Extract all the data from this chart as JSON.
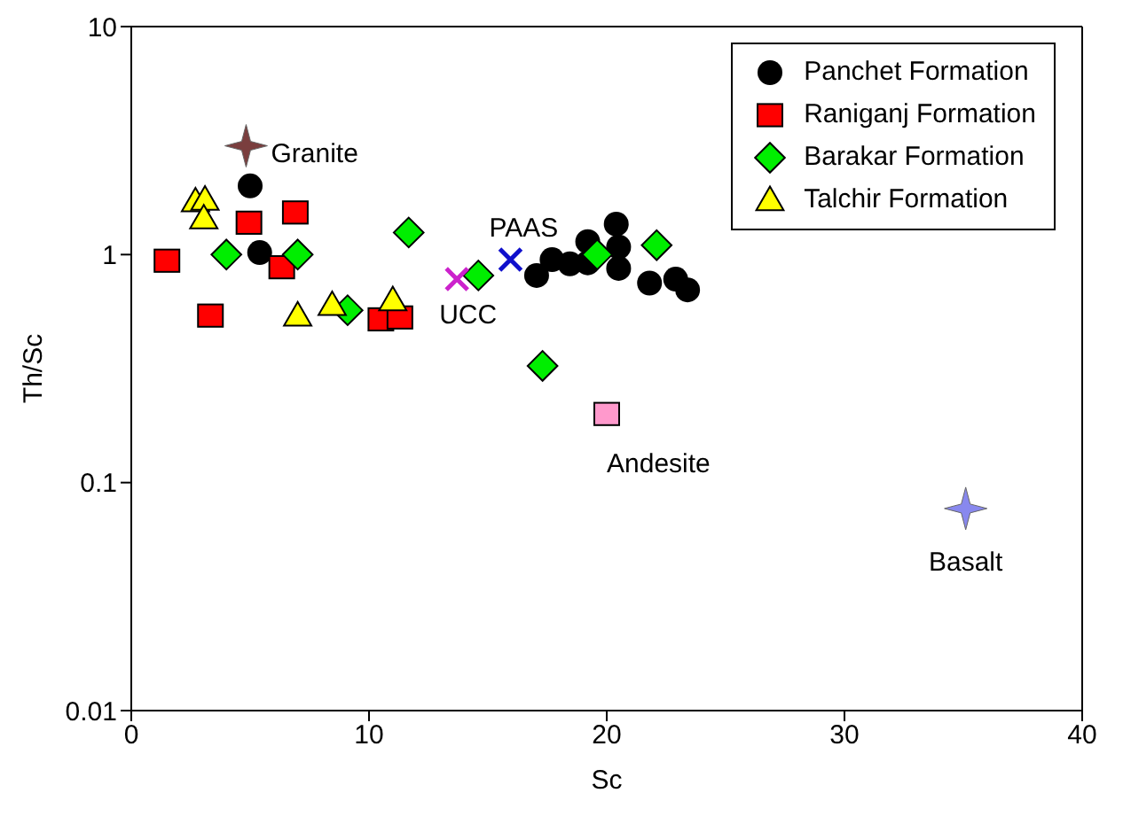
{
  "chart_data": {
    "type": "scatter",
    "xlabel": "Sc",
    "ylabel": "Th/Sc",
    "log": "y",
    "xlim": [
      0,
      40
    ],
    "xticks": [
      0,
      10,
      20,
      30,
      40
    ],
    "ylim": [
      0.01,
      10
    ],
    "yticks": [
      0.01,
      0.1,
      1,
      10
    ],
    "grid": false,
    "legend": "top right",
    "series": [
      {
        "name": "Panchet Formation",
        "color": "#000000",
        "marker": "circle",
        "x": [
          5.0,
          5.4,
          17.05,
          17.7,
          18.45,
          19.2,
          19.2,
          20.4,
          20.5,
          20.5,
          21.8,
          22.9,
          23.4
        ],
        "values": [
          2.0,
          1.02,
          0.81,
          0.95,
          0.91,
          0.92,
          1.14,
          1.36,
          1.08,
          0.87,
          0.75,
          0.78,
          0.7
        ]
      },
      {
        "name": "Raniganj Formation",
        "color": "#ff0000",
        "marker": "square",
        "x": [
          1.5,
          4.95,
          6.9,
          6.33,
          3.33,
          10.5,
          11.3
        ],
        "values": [
          0.94,
          1.38,
          1.53,
          0.88,
          0.54,
          0.52,
          0.53
        ]
      },
      {
        "name": "Barakar Formation",
        "color": "#00ee00",
        "marker": "diamond",
        "x": [
          4.0,
          7.0,
          11.67,
          9.1,
          14.6,
          19.6,
          22.1,
          17.3
        ],
        "values": [
          1.0,
          1.0,
          1.25,
          0.57,
          0.81,
          1.0,
          1.1,
          0.325
        ]
      },
      {
        "name": "Talchir Formation",
        "color": "#ffff00",
        "marker": "triangle",
        "x": [
          2.7,
          3.1,
          3.05,
          7.0,
          8.45,
          11.0
        ],
        "values": [
          1.71,
          1.74,
          1.44,
          0.54,
          0.6,
          0.63
        ]
      },
      {
        "name": "Granite",
        "color": "#7a3e3e",
        "marker": "star",
        "x": [
          4.83
        ],
        "values": [
          3.0
        ]
      },
      {
        "name": "UCC",
        "color": "#cc22cc",
        "marker": "cross",
        "x": [
          13.7
        ],
        "values": [
          0.78
        ]
      },
      {
        "name": "PAAS",
        "color": "#1010cc",
        "marker": "cross",
        "x": [
          15.95
        ],
        "values": [
          0.95
        ]
      },
      {
        "name": "Andesite",
        "color": "#ff99cc",
        "marker": "square",
        "x": [
          20.0
        ],
        "values": [
          0.2
        ]
      },
      {
        "name": "Basalt",
        "color": "#8888ee",
        "marker": "star",
        "x": [
          35.1
        ],
        "values": [
          0.077
        ]
      }
    ]
  }
}
